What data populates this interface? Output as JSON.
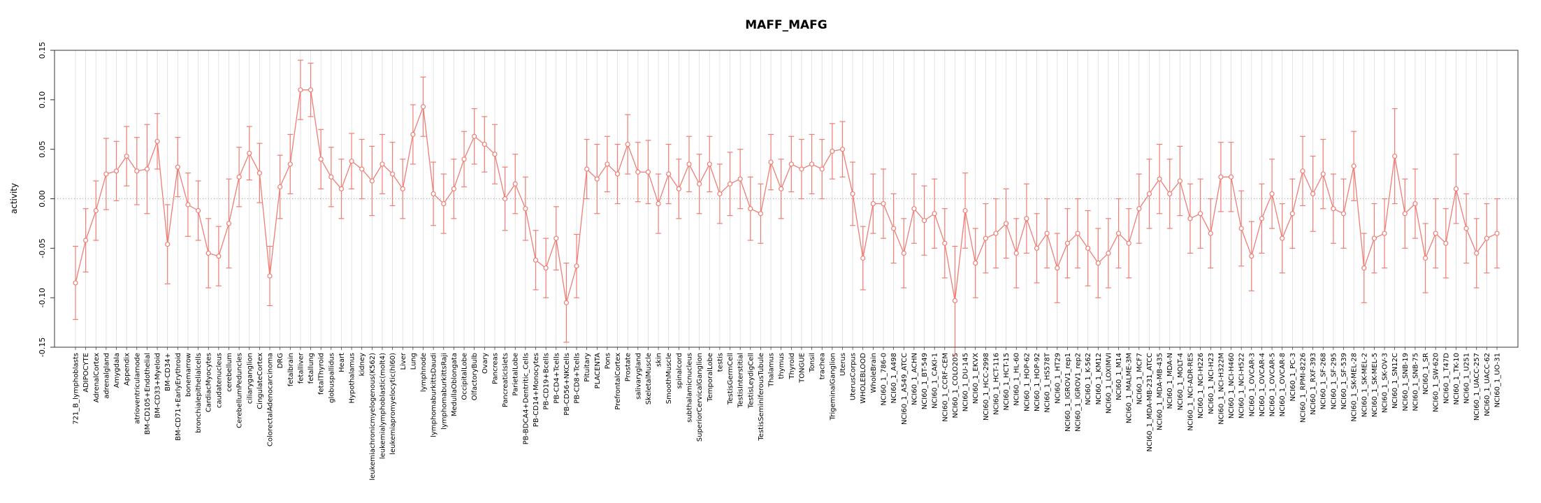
{
  "chart_data": {
    "type": "line",
    "title": "MAFF_MAFG",
    "ylabel": "activity",
    "xlabel": "",
    "ylim": [
      -0.15,
      0.15
    ],
    "yticks": [
      -0.15,
      -0.1,
      -0.05,
      0.0,
      0.05,
      0.1,
      0.15
    ],
    "legend": "none",
    "grid": "light vertical gridline per category, dotted horizontal line at 0",
    "point_style": "open circles with error bars, connected by line",
    "point_color": "#ef7d75",
    "grid_color": "#dcdcdc",
    "zero_line_color": "#aaaaaa",
    "axis_color": "#333333",
    "categories": [
      "721_B_lymphoblasts",
      "ADIPOCYTE",
      "AdrenalCortex",
      "adrenalgland",
      "Amygdala",
      "Appendix",
      "atrioventricularnode",
      "BM-CD105+Endothelial",
      "BM-CD33+Myeloid",
      "BM-CD34+",
      "BM-CD71+EarlyErythroid",
      "bonemarrow",
      "bronchialepithelialcells",
      "CardiacMyocytes",
      "caudatenucleus",
      "cerebellum",
      "CerebellumPeduncles",
      "ciliaryganglion",
      "CingulateCortex",
      "ColorectalAdenocarcinoma",
      "DRG",
      "fetalbrain",
      "fetalliver",
      "fetallung",
      "fetalThyroid",
      "globuspallidus",
      "Heart",
      "Hypothalamus",
      "kidney",
      "leukemiachronicmyelogenous(K562)",
      "leukemialymphoblastic(molt4)",
      "leukemiapromyelocytic(hl60)",
      "Liver",
      "Lung",
      "lymphnode",
      "lymphomaburkittsDaudi",
      "lymphomaburkittsRaji",
      "MedullaOblongata",
      "OccipitalLobe",
      "OlfactoryBulb",
      "Ovary",
      "Pancreas",
      "PancreaticIslets",
      "ParietalLobe",
      "PB-BDCA4+Dentritic_Cells",
      "PB-CD14+Monocytes",
      "PB-CD19+Bcells",
      "PB-CD4+Tcells",
      "PB-CD56+NKCells",
      "PB-CD8+Tcells",
      "Pituitary",
      "PLACENTA",
      "Pons",
      "PrefrontalCortex",
      "Prostate",
      "salivarygland",
      "SkeletalMuscle",
      "skin",
      "SmoothMuscle",
      "spinalcord",
      "subthalamicnucleus",
      "SuperiorCervicalGanglion",
      "TemporalLobe",
      "testis",
      "TestisGermCell",
      "TestisInterstitial",
      "TestisLeydigCell",
      "TestisSeminiferousTubule",
      "Thalamus",
      "thymus",
      "Thyroid",
      "TONGUE",
      "Tonsil",
      "trachea",
      "TrigeminalGanglion",
      "Uterus",
      "UterusCorpus",
      "WHOLEBLOOD",
      "WholeBrain",
      "NCI60_1_786-0",
      "NCI60_1_A498",
      "NCI60_1_A549_ATCC",
      "NCI60_1_ACHN",
      "NCI60_1_BT-549",
      "NCI60_1_CAKI-1",
      "NCI60_1_CCRF-CEM",
      "NCI60_1_COLO205",
      "NCI60_1_DU-145",
      "NCI60_1_EKVX",
      "NCI60_1_HCC-2998",
      "NCI60_1_HCT-116",
      "NCI60_1_HCT-15",
      "NCI60_1_HL-60",
      "NCI60_1_HOP-62",
      "NCI60_1_HOP-92",
      "NCI60_1_HS578T",
      "NCI60_1_HT29",
      "NCI60_1_IGROV1_rep1",
      "NCI60_1_IGROV1_rep2",
      "NCI60_1_K-562",
      "NCI60_1_KM12",
      "NCI60_1_LOXIMVI",
      "NCI60_1_M14",
      "NCI60_1_MALME-3M",
      "NCI60_1_MCF7",
      "NCI60_1_MDA-MB-231_ATCC",
      "NCI60_1_MDA-MB-435",
      "NCI60_1_MDA-N",
      "NCI60_1_MOLT-4",
      "NCI60_1_NCI-ADR-RES",
      "NCI60_1_NCI-H226",
      "NCI60_1_NCI-H23",
      "NCI60_1_NCI-H322M",
      "NCI60_1_NCI-H460",
      "NCI60_1_NCI-H522",
      "NCI60_1_OVCAR-3",
      "NCI60_1_OVCAR-4",
      "NCI60_1_OVCAR-5",
      "NCI60_1_OVCAR-8",
      "NCI60_1_PC-3",
      "NCI60_1_RPMI-8226",
      "NCI60_1_RXF-393",
      "NCI60_1_SF-268",
      "NCI60_1_SF-295",
      "NCI60_1_SF-539",
      "NCI60_1_SK-MEL-28",
      "NCI60_1_SK-MEL-2",
      "NCI60_1_SK-MEL-5",
      "NCI60_1_SK-OV-3",
      "NCI60_1_SN12C",
      "NCI60_1_SNB-19",
      "NCI60_1_SNB-75",
      "NCI60_1_SR",
      "NCI60_1_SW-620",
      "NCI60_1_T47D",
      "NCI60_1_TK-10",
      "NCI60_1_U251",
      "NCI60_1_UACC-257",
      "NCI60_1_UACC-62",
      "NCI60_1_UO-31"
    ],
    "values": [
      -0.085,
      -0.042,
      -0.012,
      0.025,
      0.028,
      0.043,
      0.028,
      0.03,
      0.058,
      -0.046,
      0.032,
      -0.006,
      -0.012,
      -0.055,
      -0.058,
      -0.025,
      0.022,
      0.046,
      0.026,
      -0.078,
      0.012,
      0.035,
      0.11,
      0.11,
      0.04,
      0.022,
      0.01,
      0.038,
      0.03,
      0.018,
      0.035,
      0.025,
      0.01,
      0.065,
      0.093,
      0.005,
      -0.005,
      0.01,
      0.04,
      0.063,
      0.055,
      0.045,
      0.0,
      0.015,
      -0.01,
      -0.062,
      -0.07,
      -0.04,
      -0.105,
      -0.068,
      0.03,
      0.02,
      0.035,
      0.025,
      0.055,
      0.027,
      0.027,
      -0.005,
      0.025,
      0.01,
      0.035,
      0.015,
      0.035,
      0.005,
      0.015,
      0.02,
      -0.01,
      -0.015,
      0.037,
      0.01,
      0.035,
      0.03,
      0.035,
      0.03,
      0.048,
      0.05,
      0.005,
      -0.06,
      -0.005,
      -0.005,
      -0.03,
      -0.055,
      -0.01,
      -0.022,
      -0.015,
      -0.045,
      -0.103,
      -0.012,
      -0.065,
      -0.04,
      -0.035,
      -0.025,
      -0.055,
      -0.02,
      -0.05,
      -0.035,
      -0.07,
      -0.045,
      -0.035,
      -0.05,
      -0.065,
      -0.055,
      -0.035,
      -0.045,
      -0.01,
      0.005,
      0.02,
      0.005,
      0.018,
      -0.02,
      -0.015,
      -0.035,
      0.022,
      0.022,
      -0.03,
      -0.058,
      -0.02,
      0.005,
      -0.04,
      -0.015,
      0.028,
      0.005,
      0.025,
      -0.01,
      -0.015,
      0.033,
      -0.07,
      -0.04,
      -0.035,
      0.043,
      -0.015,
      -0.005,
      -0.06,
      -0.035,
      -0.045,
      0.01,
      -0.03,
      -0.055,
      -0.04,
      -0.035
    ],
    "errors": [
      0.037,
      0.032,
      0.03,
      0.036,
      0.03,
      0.03,
      0.034,
      0.045,
      0.028,
      0.04,
      0.03,
      0.032,
      0.03,
      0.035,
      0.03,
      0.045,
      0.03,
      0.027,
      0.03,
      0.03,
      0.032,
      0.03,
      0.03,
      0.027,
      0.03,
      0.03,
      0.03,
      0.028,
      0.03,
      0.035,
      0.03,
      0.032,
      0.03,
      0.03,
      0.03,
      0.032,
      0.03,
      0.03,
      0.028,
      0.028,
      0.028,
      0.03,
      0.032,
      0.03,
      0.032,
      0.03,
      0.03,
      0.032,
      0.04,
      0.032,
      0.03,
      0.035,
      0.028,
      0.03,
      0.03,
      0.03,
      0.032,
      0.03,
      0.03,
      0.03,
      0.028,
      0.03,
      0.028,
      0.03,
      0.032,
      0.03,
      0.032,
      0.03,
      0.028,
      0.03,
      0.028,
      0.03,
      0.03,
      0.03,
      0.028,
      0.028,
      0.032,
      0.032,
      0.03,
      0.035,
      0.035,
      0.035,
      0.035,
      0.035,
      0.035,
      0.035,
      0.055,
      0.038,
      0.035,
      0.035,
      0.035,
      0.035,
      0.035,
      0.035,
      0.035,
      0.035,
      0.035,
      0.035,
      0.035,
      0.038,
      0.035,
      0.035,
      0.035,
      0.035,
      0.035,
      0.035,
      0.035,
      0.035,
      0.035,
      0.035,
      0.035,
      0.035,
      0.035,
      0.035,
      0.038,
      0.035,
      0.035,
      0.035,
      0.035,
      0.035,
      0.035,
      0.038,
      0.035,
      0.035,
      0.035,
      0.035,
      0.035,
      0.035,
      0.035,
      0.048,
      0.035,
      0.035,
      0.035,
      0.035,
      0.035,
      0.035,
      0.035,
      0.035,
      0.035,
      0.035
    ]
  }
}
